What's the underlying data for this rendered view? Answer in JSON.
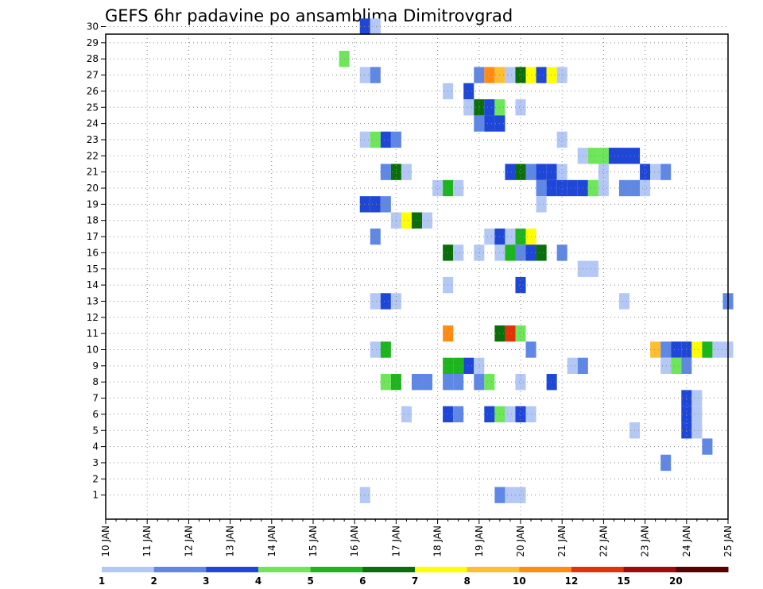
{
  "chart_data": {
    "type": "heatmap",
    "title": "GEFS 6hr padavine po ansamblima Dimitrovgrad",
    "xlabel": "",
    "ylabel": "",
    "x_ticks": [
      "10 JAN",
      "11 JAN",
      "12 JAN",
      "13 JAN",
      "14 JAN",
      "15 JAN",
      "16 JAN",
      "17 JAN",
      "18 JAN",
      "19 JAN",
      "20 JAN",
      "21 JAN",
      "22 JAN",
      "23 JAN",
      "24 JAN",
      "25 JAN"
    ],
    "y_ticks": [
      "1",
      "2",
      "3",
      "4",
      "5",
      "6",
      "7",
      "8",
      "9",
      "10",
      "11",
      "12",
      "13",
      "14",
      "15",
      "16",
      "17",
      "18",
      "19",
      "20",
      "21",
      "22",
      "23",
      "24",
      "25",
      "26",
      "27",
      "28",
      "29",
      "30"
    ],
    "xlim": [
      0,
      61
    ],
    "ylim": [
      0,
      30
    ],
    "grid": true,
    "step_hours": 6,
    "colorbar": {
      "labels": [
        "1",
        "2",
        "3",
        "4",
        "5",
        "6",
        "7",
        "8",
        "10",
        "12",
        "15",
        "20"
      ],
      "colors": [
        "#b4c8f5",
        "#5f87e6",
        "#1e46d7",
        "#6ee65a",
        "#1eb41e",
        "#0a6e0a",
        "#ffff00",
        "#ffbe32",
        "#ff8c14",
        "#e1320a",
        "#a00a0a",
        "#5a0000"
      ]
    },
    "cells": [
      [
        25,
        30,
        3
      ],
      [
        26,
        30,
        1
      ],
      [
        23,
        28,
        4
      ],
      [
        25,
        27,
        1
      ],
      [
        26,
        27,
        2
      ],
      [
        36,
        27,
        2
      ],
      [
        37,
        27,
        9
      ],
      [
        38,
        27,
        8
      ],
      [
        39,
        27,
        1
      ],
      [
        40,
        27,
        6
      ],
      [
        41,
        27,
        7
      ],
      [
        42,
        27,
        3
      ],
      [
        43,
        27,
        7
      ],
      [
        44,
        27,
        1
      ],
      [
        33,
        26,
        1
      ],
      [
        35,
        26,
        3
      ],
      [
        35,
        25,
        1
      ],
      [
        36,
        25,
        6
      ],
      [
        37,
        25,
        3
      ],
      [
        38,
        25,
        4
      ],
      [
        40,
        25,
        1
      ],
      [
        36,
        24,
        2
      ],
      [
        37,
        24,
        3
      ],
      [
        38,
        24,
        3
      ],
      [
        25,
        23,
        1
      ],
      [
        26,
        23,
        4
      ],
      [
        27,
        23,
        3
      ],
      [
        28,
        23,
        2
      ],
      [
        44,
        23,
        1
      ],
      [
        46,
        22,
        1
      ],
      [
        47,
        22,
        4
      ],
      [
        48,
        22,
        4
      ],
      [
        49,
        22,
        3
      ],
      [
        50,
        22,
        3
      ],
      [
        51,
        22,
        3
      ],
      [
        27,
        21,
        2
      ],
      [
        28,
        21,
        6
      ],
      [
        29,
        21,
        1
      ],
      [
        39,
        21,
        3
      ],
      [
        40,
        21,
        6
      ],
      [
        41,
        21,
        2
      ],
      [
        42,
        21,
        3
      ],
      [
        43,
        21,
        3
      ],
      [
        44,
        21,
        1
      ],
      [
        48,
        21,
        1
      ],
      [
        52,
        21,
        3
      ],
      [
        53,
        21,
        1
      ],
      [
        54,
        21,
        2
      ],
      [
        32,
        20,
        1
      ],
      [
        33,
        20,
        5
      ],
      [
        34,
        20,
        1
      ],
      [
        42,
        20,
        2
      ],
      [
        43,
        20,
        3
      ],
      [
        44,
        20,
        3
      ],
      [
        45,
        20,
        3
      ],
      [
        46,
        20,
        3
      ],
      [
        47,
        20,
        4
      ],
      [
        48,
        20,
        1
      ],
      [
        50,
        20,
        2
      ],
      [
        51,
        20,
        2
      ],
      [
        52,
        20,
        1
      ],
      [
        25,
        19,
        3
      ],
      [
        26,
        19,
        3
      ],
      [
        27,
        19,
        2
      ],
      [
        42,
        19,
        1
      ],
      [
        28,
        18,
        1
      ],
      [
        29,
        18,
        7
      ],
      [
        30,
        18,
        6
      ],
      [
        31,
        18,
        1
      ],
      [
        26,
        17,
        2
      ],
      [
        37,
        17,
        1
      ],
      [
        38,
        17,
        3
      ],
      [
        39,
        17,
        1
      ],
      [
        40,
        17,
        5
      ],
      [
        41,
        17,
        7
      ],
      [
        33,
        16,
        6
      ],
      [
        34,
        16,
        1
      ],
      [
        36,
        16,
        1
      ],
      [
        38,
        16,
        1
      ],
      [
        39,
        16,
        5
      ],
      [
        40,
        16,
        2
      ],
      [
        41,
        16,
        3
      ],
      [
        42,
        16,
        6
      ],
      [
        44,
        16,
        2
      ],
      [
        46,
        15,
        1
      ],
      [
        47,
        15,
        1
      ],
      [
        33,
        14,
        1
      ],
      [
        40,
        14,
        3
      ],
      [
        26,
        13,
        1
      ],
      [
        27,
        13,
        3
      ],
      [
        28,
        13,
        1
      ],
      [
        50,
        13,
        1
      ],
      [
        60,
        13,
        2
      ],
      [
        33,
        11,
        9
      ],
      [
        38,
        11,
        6
      ],
      [
        39,
        11,
        10
      ],
      [
        40,
        11,
        4
      ],
      [
        26,
        10,
        1
      ],
      [
        27,
        10,
        5
      ],
      [
        41,
        10,
        2
      ],
      [
        53,
        10,
        8
      ],
      [
        54,
        10,
        2
      ],
      [
        55,
        10,
        3
      ],
      [
        56,
        10,
        3
      ],
      [
        57,
        10,
        7
      ],
      [
        58,
        10,
        5
      ],
      [
        59,
        10,
        1
      ],
      [
        60,
        10,
        1
      ],
      [
        33,
        9,
        5
      ],
      [
        34,
        9,
        5
      ],
      [
        35,
        9,
        3
      ],
      [
        36,
        9,
        1
      ],
      [
        45,
        9,
        1
      ],
      [
        46,
        9,
        2
      ],
      [
        54,
        9,
        1
      ],
      [
        55,
        9,
        4
      ],
      [
        56,
        9,
        2
      ],
      [
        27,
        8,
        4
      ],
      [
        28,
        8,
        5
      ],
      [
        30,
        8,
        2
      ],
      [
        31,
        8,
        2
      ],
      [
        33,
        8,
        2
      ],
      [
        34,
        8,
        2
      ],
      [
        36,
        8,
        2
      ],
      [
        37,
        8,
        4
      ],
      [
        40,
        8,
        1
      ],
      [
        43,
        8,
        3
      ],
      [
        56,
        7,
        3
      ],
      [
        57,
        7,
        1
      ],
      [
        29,
        6,
        1
      ],
      [
        33,
        6,
        3
      ],
      [
        34,
        6,
        2
      ],
      [
        37,
        6,
        3
      ],
      [
        38,
        6,
        4
      ],
      [
        39,
        6,
        1
      ],
      [
        40,
        6,
        3
      ],
      [
        41,
        6,
        1
      ],
      [
        56,
        6,
        3
      ],
      [
        57,
        6,
        1
      ],
      [
        51,
        5,
        1
      ],
      [
        56,
        5,
        3
      ],
      [
        57,
        5,
        1
      ],
      [
        58,
        4,
        2
      ],
      [
        54,
        3,
        2
      ],
      [
        25,
        1,
        1
      ],
      [
        38,
        1,
        2
      ],
      [
        39,
        1,
        1
      ],
      [
        40,
        1,
        1
      ]
    ]
  }
}
